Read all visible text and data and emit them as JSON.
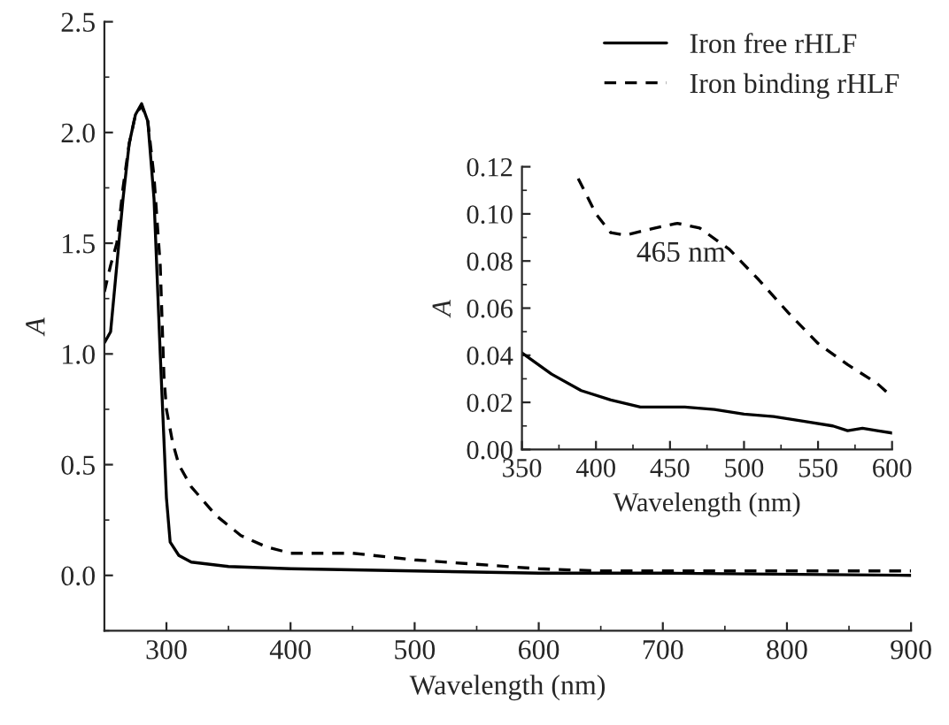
{
  "chart_data": [
    {
      "type": "line",
      "xlabel": "Wavelength (nm)",
      "ylabel": "A",
      "legend": "top right",
      "xlim": [
        250,
        900
      ],
      "ylim": [
        -0.25,
        2.5
      ],
      "xticks": [
        300,
        400,
        500,
        600,
        700,
        800,
        900
      ],
      "yticks": [
        {
          "value": 0,
          "label": "0.0"
        },
        {
          "value": 0.5,
          "label": "0.5"
        },
        {
          "value": 1,
          "label": "1.0"
        },
        {
          "value": 1.5,
          "label": "1.5"
        },
        {
          "value": 2,
          "label": "2.0"
        },
        {
          "value": 2.5,
          "label": "2.5"
        }
      ],
      "series": [
        {
          "name": "Iron free rHLF",
          "color": "#000000",
          "line_style": "solid",
          "x": [
            250,
            255,
            260,
            265,
            270,
            275,
            280,
            285,
            290,
            295,
            300,
            303,
            310,
            320,
            350,
            400,
            500,
            600,
            700,
            900
          ],
          "values": [
            1.05,
            1.1,
            1.4,
            1.7,
            1.95,
            2.08,
            2.13,
            2.05,
            1.7,
            1.0,
            0.35,
            0.15,
            0.09,
            0.06,
            0.04,
            0.03,
            0.02,
            0.01,
            0.01,
            0.0
          ]
        },
        {
          "name": "Iron binding rHLF",
          "color": "#000000",
          "line_style": "dashed",
          "x": [
            250,
            255,
            260,
            265,
            270,
            275,
            280,
            285,
            290,
            295,
            298,
            300,
            305,
            310,
            320,
            340,
            360,
            380,
            400,
            450,
            500,
            550,
            600,
            650,
            700,
            900
          ],
          "values": [
            1.28,
            1.4,
            1.5,
            1.75,
            1.95,
            2.08,
            2.12,
            2.05,
            1.8,
            1.4,
            0.9,
            0.75,
            0.6,
            0.5,
            0.4,
            0.27,
            0.18,
            0.13,
            0.1,
            0.1,
            0.07,
            0.05,
            0.03,
            0.02,
            0.02,
            0.02
          ]
        }
      ]
    },
    {
      "type": "line",
      "xlabel": "Wavelength (nm)",
      "ylabel": "A",
      "xlim": [
        350,
        600
      ],
      "ylim": [
        0,
        0.12
      ],
      "xticks": [
        350,
        400,
        450,
        500,
        550,
        600
      ],
      "yticks": [
        {
          "value": 0,
          "label": "0.00"
        },
        {
          "value": 0.02,
          "label": "0.02"
        },
        {
          "value": 0.04,
          "label": "0.04"
        },
        {
          "value": 0.06,
          "label": "0.06"
        },
        {
          "value": 0.08,
          "label": "0.08"
        },
        {
          "value": 0.1,
          "label": "0.10"
        },
        {
          "value": 0.12,
          "label": "0.12"
        }
      ],
      "annotations": [
        "465 nm"
      ],
      "series": [
        {
          "color": "#000000",
          "line_style": "solid",
          "x": [
            350,
            370,
            390,
            410,
            430,
            460,
            480,
            500,
            520,
            540,
            560,
            570,
            580,
            590,
            600
          ],
          "values": [
            0.041,
            0.032,
            0.025,
            0.021,
            0.018,
            0.018,
            0.017,
            0.015,
            0.014,
            0.012,
            0.01,
            0.008,
            0.009,
            0.008,
            0.007
          ]
        },
        {
          "color": "#000000",
          "line_style": "dashed",
          "x": [
            388,
            400,
            410,
            420,
            440,
            455,
            470,
            490,
            510,
            530,
            550,
            570,
            590,
            597
          ],
          "values": [
            0.115,
            0.1,
            0.092,
            0.091,
            0.094,
            0.096,
            0.094,
            0.085,
            0.072,
            0.058,
            0.045,
            0.036,
            0.028,
            0.024
          ]
        }
      ]
    }
  ]
}
